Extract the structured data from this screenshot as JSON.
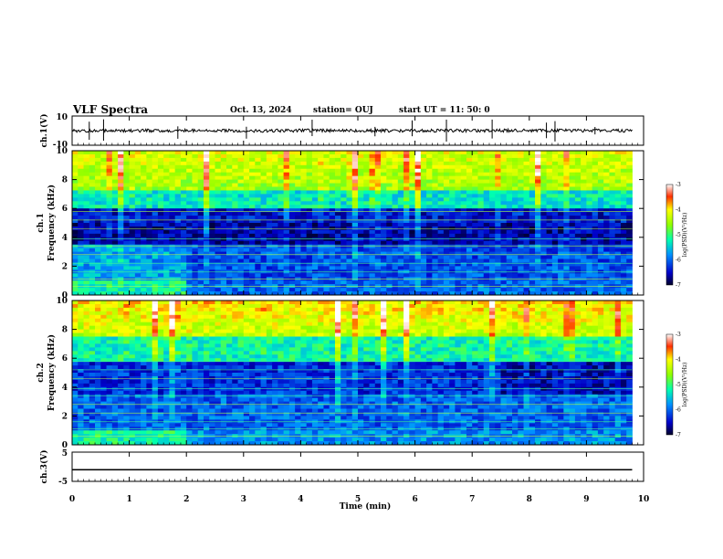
{
  "header": {
    "title": "VLF Spectra",
    "date": "Oct. 13, 2024",
    "station": "station= OUJ",
    "start": "start  UT  =   11: 50: 0"
  },
  "colors": {
    "trace": "#000000",
    "colormap": [
      "#00002a",
      "#00007a",
      "#0000ff",
      "#00c0ff",
      "#00ff80",
      "#b0ff00",
      "#ffff00",
      "#ff8000",
      "#ff0000",
      "#ffffff"
    ]
  },
  "chart_data": [
    {
      "type": "line",
      "id": "ch1",
      "ylabel": "ch.1(V)",
      "ylim": [
        -10,
        10
      ],
      "yticks": [
        "10",
        "-10"
      ],
      "x_range_min": [
        0,
        9.8
      ],
      "baseline_value": 0,
      "description_values": "near-zero waveform with sporadic spikes"
    },
    {
      "type": "heatmap",
      "id": "ch1-spectrogram",
      "ylabel": "ch.1\nFrequency (kHz)",
      "ylabel_lines": [
        "ch.1",
        "Frequency (kHz)"
      ],
      "ylim": [
        0,
        10
      ],
      "yticks": [
        "0",
        "2",
        "4",
        "6",
        "8",
        "10"
      ],
      "x_range_min": [
        0,
        9.8
      ],
      "colorbar": {
        "label": "log(PSD)(V²/Hz)",
        "range": [
          -7,
          -3
        ],
        "ticks": [
          "-3",
          "-4",
          "-5",
          "-6",
          "-7"
        ]
      }
    },
    {
      "type": "heatmap",
      "id": "ch2-spectrogram",
      "ylabel_lines": [
        "ch.2",
        "Frequency (kHz)"
      ],
      "ylim": [
        0,
        10
      ],
      "yticks": [
        "0",
        "2",
        "4",
        "6",
        "8",
        "10"
      ],
      "x_range_min": [
        0,
        9.8
      ],
      "colorbar": {
        "label": "log(PSD)(V²/Hz)",
        "range": [
          -7,
          -3
        ],
        "ticks": [
          "-3",
          "-4",
          "-5",
          "-6",
          "-7"
        ]
      }
    },
    {
      "type": "line",
      "id": "ch3",
      "ylabel": "ch.3(V)",
      "ylim": [
        -5,
        5
      ],
      "yticks": [
        "5",
        "-5"
      ],
      "x_range_min": [
        0,
        9.8
      ],
      "constant_value": -1
    }
  ],
  "xaxis": {
    "label": "Time (min)",
    "range": [
      0,
      10
    ],
    "ticks": [
      "0",
      "1",
      "2",
      "3",
      "4",
      "5",
      "6",
      "7",
      "8",
      "9",
      "10"
    ]
  }
}
